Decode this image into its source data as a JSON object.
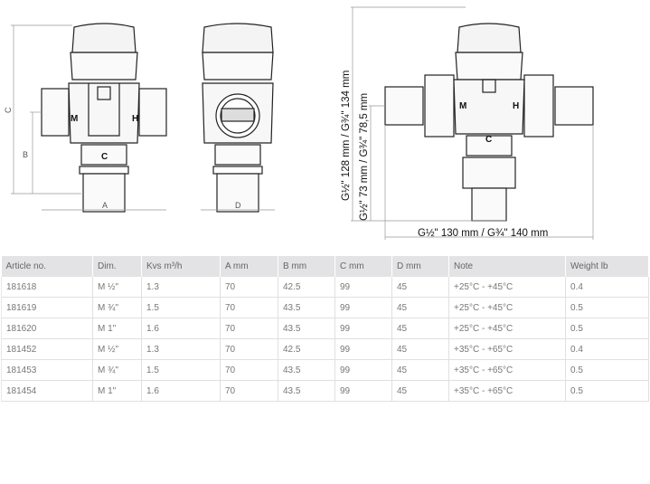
{
  "drawings": {
    "front_view": {
      "dim_c": "C",
      "dim_b": "B",
      "dim_a": "A",
      "port_m": "M",
      "port_h": "H",
      "port_c": "C"
    },
    "side_view": {
      "dim_d": "D"
    },
    "union_view": {
      "port_m": "M",
      "port_h": "H",
      "port_c": "C",
      "height_total": "G½\" 128 mm / G¾\" 134 mm",
      "height_inlet": "G½\" 73 mm / G¾\" 78,5 mm",
      "width_total": "G½\" 130 mm / G¾\" 140 mm"
    }
  },
  "table": {
    "headers": [
      "Article no.",
      "Dim.",
      "Kvs m³/h",
      "A mm",
      "B mm",
      "C mm",
      "D mm",
      "Note",
      "Weight lb"
    ],
    "rows": [
      [
        "181618",
        "M ½\"",
        "1.3",
        "70",
        "42.5",
        "99",
        "45",
        "+25°C - +45°C",
        "0.4"
      ],
      [
        "181619",
        "M ¾\"",
        "1.5",
        "70",
        "43.5",
        "99",
        "45",
        "+25°C - +45°C",
        "0.5"
      ],
      [
        "181620",
        "M 1\"",
        "1.6",
        "70",
        "43.5",
        "99",
        "45",
        "+25°C - +45°C",
        "0.5"
      ],
      [
        "181452",
        "M ½\"",
        "1.3",
        "70",
        "42.5",
        "99",
        "45",
        "+35°C - +65°C",
        "0.4"
      ],
      [
        "181453",
        "M ¾\"",
        "1.5",
        "70",
        "43.5",
        "99",
        "45",
        "+35°C - +65°C",
        "0.5"
      ],
      [
        "181454",
        "M 1\"",
        "1.6",
        "70",
        "43.5",
        "99",
        "45",
        "+35°C - +65°C",
        "0.5"
      ]
    ]
  }
}
